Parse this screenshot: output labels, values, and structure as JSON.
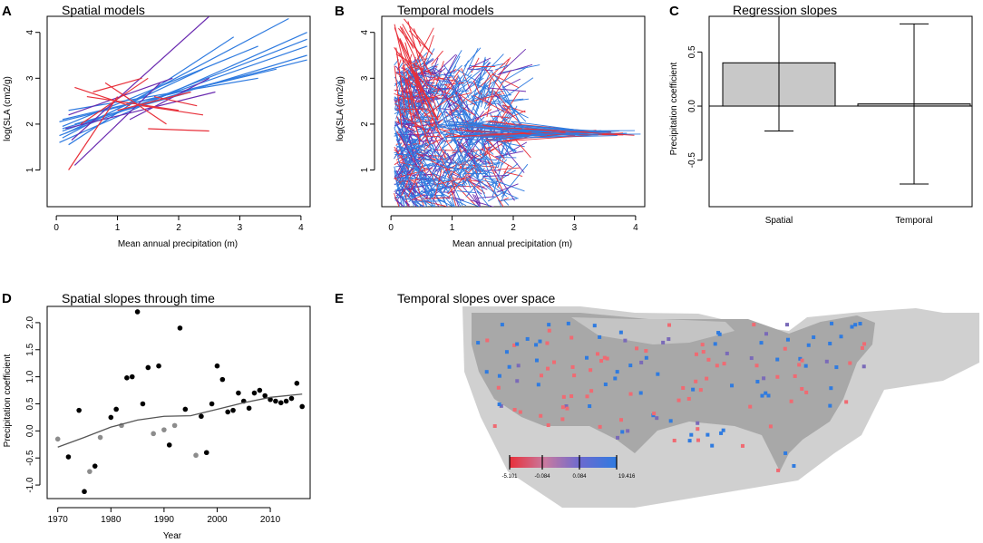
{
  "panel_letters": {
    "a": "A",
    "b": "B",
    "c": "C",
    "d": "D",
    "e": "E"
  },
  "colors": {
    "red": "#e8303a",
    "blue": "#2f7be0",
    "purple": "#6a2bb0",
    "bar": "#c8c8c8",
    "map_bg": "#d0d0d0",
    "map_dot": "#a8a8a8",
    "point_black": "#000000",
    "point_grey": "#8c8c8c"
  },
  "chart_data": [
    {
      "id": "A",
      "type": "line",
      "title": "Spatial models",
      "xlabel": "Mean annual precipitation (m)",
      "ylabel": "log(SLA (cm2/g)",
      "xlim": [
        -0.15,
        4.15
      ],
      "ylim": [
        0.2,
        4.35
      ],
      "xticks": [
        0,
        1,
        2,
        3,
        4
      ],
      "yticks": [
        1,
        2,
        3,
        4
      ],
      "segments": [
        {
          "x0": 0.05,
          "y0": 1.6,
          "x1": 4.1,
          "y1": 4.0,
          "color": "blue"
        },
        {
          "x0": 0.1,
          "y0": 1.7,
          "x1": 3.8,
          "y1": 4.3,
          "color": "blue"
        },
        {
          "x0": 0.05,
          "y0": 1.75,
          "x1": 4.1,
          "y1": 3.85,
          "color": "blue"
        },
        {
          "x0": 0.1,
          "y0": 1.85,
          "x1": 4.1,
          "y1": 3.7,
          "color": "blue"
        },
        {
          "x0": 0.1,
          "y0": 1.9,
          "x1": 4.1,
          "y1": 3.5,
          "color": "blue"
        },
        {
          "x0": 0.05,
          "y0": 2.05,
          "x1": 4.1,
          "y1": 3.4,
          "color": "blue"
        },
        {
          "x0": 0.1,
          "y0": 1.95,
          "x1": 3.3,
          "y1": 3.7,
          "color": "blue"
        },
        {
          "x0": 0.1,
          "y0": 2.1,
          "x1": 3.6,
          "y1": 3.2,
          "color": "blue"
        },
        {
          "x0": 0.2,
          "y0": 1.55,
          "x1": 2.9,
          "y1": 3.9,
          "color": "blue"
        },
        {
          "x0": 0.2,
          "y0": 2.3,
          "x1": 3.3,
          "y1": 3.0,
          "color": "blue"
        },
        {
          "x0": 0.15,
          "y0": 1.8,
          "x1": 2.4,
          "y1": 3.2,
          "color": "blue"
        },
        {
          "x0": 0.3,
          "y0": 2.0,
          "x1": 2.2,
          "y1": 2.7,
          "color": "blue"
        },
        {
          "x0": 0.25,
          "y0": 1.65,
          "x1": 2.5,
          "y1": 4.35,
          "color": "purple"
        },
        {
          "x0": 0.15,
          "y0": 1.9,
          "x1": 2.6,
          "y1": 2.7,
          "color": "purple"
        },
        {
          "x0": 0.2,
          "y0": 2.2,
          "x1": 1.9,
          "y1": 3.0,
          "color": "purple"
        },
        {
          "x0": 0.3,
          "y0": 1.1,
          "x1": 1.7,
          "y1": 2.9,
          "color": "purple"
        },
        {
          "x0": 1.2,
          "y0": 2.1,
          "x1": 2.5,
          "y1": 3.0,
          "color": "purple"
        },
        {
          "x0": 0.2,
          "y0": 1.0,
          "x1": 1.0,
          "y1": 2.6,
          "color": "red"
        },
        {
          "x0": 0.3,
          "y0": 2.8,
          "x1": 1.2,
          "y1": 2.4,
          "color": "red"
        },
        {
          "x0": 0.5,
          "y0": 2.6,
          "x1": 2.0,
          "y1": 2.3,
          "color": "red"
        },
        {
          "x0": 0.8,
          "y0": 2.9,
          "x1": 1.8,
          "y1": 2.0,
          "color": "red"
        },
        {
          "x0": 1.0,
          "y0": 2.3,
          "x1": 2.2,
          "y1": 2.7,
          "color": "red"
        },
        {
          "x0": 1.5,
          "y0": 1.9,
          "x1": 2.5,
          "y1": 1.85,
          "color": "red"
        },
        {
          "x0": 1.4,
          "y0": 2.4,
          "x1": 2.4,
          "y1": 2.2,
          "color": "red"
        },
        {
          "x0": 0.4,
          "y0": 2.0,
          "x1": 1.5,
          "y1": 3.0,
          "color": "red"
        },
        {
          "x0": 0.6,
          "y0": 2.7,
          "x1": 1.4,
          "y1": 3.0,
          "color": "red"
        },
        {
          "x0": 1.6,
          "y0": 2.6,
          "x1": 2.3,
          "y1": 2.4,
          "color": "red"
        }
      ]
    },
    {
      "id": "B",
      "type": "line",
      "title": "Temporal models",
      "xlabel": "Mean annual precipitation (m)",
      "ylabel": "log(SLA (cm2/g)",
      "xlim": [
        -0.15,
        4.15
      ],
      "ylim": [
        0.2,
        4.35
      ],
      "xticks": [
        0,
        1,
        2,
        3,
        4
      ],
      "yticks": [
        1,
        2,
        3,
        4
      ],
      "segments_note": "dense cloud of ~1500 short per-site regression lines, centred near x 0.3–1.8, y 1–3, tail extending to x 4.1 at y 1.8; red spikes near x 0.1–0.3 up to y 4.3"
    },
    {
      "id": "C",
      "type": "bar",
      "title": "Regression slopes",
      "ylabel": "Precipitation coefficient",
      "categories": [
        "Spatial",
        "Temporal"
      ],
      "values": [
        0.4,
        0.02
      ],
      "error_low": [
        -0.23,
        -0.72
      ],
      "error_high": [
        0.83,
        0.76
      ],
      "ylim": [
        -0.93,
        0.83
      ],
      "yticks": [
        -0.5,
        0.0,
        0.5
      ],
      "ytick_labels": [
        "-0.5",
        "0.0",
        "0.5"
      ]
    },
    {
      "id": "D",
      "type": "scatter",
      "title": "Spatial slopes through time",
      "xlabel": "Year",
      "ylabel": "Precipitation coefficient",
      "xlim": [
        1968,
        2017.5
      ],
      "ylim": [
        -1.25,
        2.3
      ],
      "xticks": [
        1970,
        1980,
        1990,
        2000,
        2010
      ],
      "yticks": [
        -1.0,
        -0.5,
        0.0,
        0.5,
        1.0,
        1.5,
        2.0
      ],
      "ytick_labels": [
        "-1.0",
        "-0.5",
        "0.0",
        "0.5",
        "1.0",
        "1.5",
        "2.0"
      ],
      "points": [
        {
          "x": 1970,
          "y": -0.15,
          "c": "grey"
        },
        {
          "x": 1972,
          "y": -0.48,
          "c": "black"
        },
        {
          "x": 1974,
          "y": 0.38,
          "c": "black"
        },
        {
          "x": 1975,
          "y": -1.12,
          "c": "black"
        },
        {
          "x": 1976,
          "y": -0.75,
          "c": "grey"
        },
        {
          "x": 1977,
          "y": -0.65,
          "c": "black"
        },
        {
          "x": 1978,
          "y": -0.12,
          "c": "grey"
        },
        {
          "x": 1980,
          "y": 0.25,
          "c": "black"
        },
        {
          "x": 1981,
          "y": 0.4,
          "c": "black"
        },
        {
          "x": 1982,
          "y": 0.1,
          "c": "grey"
        },
        {
          "x": 1983,
          "y": 0.98,
          "c": "black"
        },
        {
          "x": 1984,
          "y": 1.0,
          "c": "black"
        },
        {
          "x": 1985,
          "y": 2.2,
          "c": "black"
        },
        {
          "x": 1986,
          "y": 0.5,
          "c": "black"
        },
        {
          "x": 1987,
          "y": 1.17,
          "c": "black"
        },
        {
          "x": 1988,
          "y": -0.05,
          "c": "grey"
        },
        {
          "x": 1989,
          "y": 1.2,
          "c": "black"
        },
        {
          "x": 1990,
          "y": 0.02,
          "c": "grey"
        },
        {
          "x": 1991,
          "y": -0.26,
          "c": "black"
        },
        {
          "x": 1992,
          "y": 0.1,
          "c": "grey"
        },
        {
          "x": 1993,
          "y": 1.9,
          "c": "black"
        },
        {
          "x": 1994,
          "y": 0.4,
          "c": "black"
        },
        {
          "x": 1996,
          "y": -0.45,
          "c": "grey"
        },
        {
          "x": 1997,
          "y": 0.27,
          "c": "black"
        },
        {
          "x": 1998,
          "y": -0.4,
          "c": "black"
        },
        {
          "x": 1999,
          "y": 0.5,
          "c": "black"
        },
        {
          "x": 2000,
          "y": 1.2,
          "c": "black"
        },
        {
          "x": 2001,
          "y": 0.95,
          "c": "black"
        },
        {
          "x": 2002,
          "y": 0.35,
          "c": "black"
        },
        {
          "x": 2003,
          "y": 0.38,
          "c": "black"
        },
        {
          "x": 2004,
          "y": 0.7,
          "c": "black"
        },
        {
          "x": 2005,
          "y": 0.55,
          "c": "black"
        },
        {
          "x": 2006,
          "y": 0.42,
          "c": "black"
        },
        {
          "x": 2007,
          "y": 0.7,
          "c": "black"
        },
        {
          "x": 2008,
          "y": 0.75,
          "c": "black"
        },
        {
          "x": 2009,
          "y": 0.65,
          "c": "black"
        },
        {
          "x": 2010,
          "y": 0.58,
          "c": "black"
        },
        {
          "x": 2011,
          "y": 0.55,
          "c": "black"
        },
        {
          "x": 2012,
          "y": 0.52,
          "c": "black"
        },
        {
          "x": 2013,
          "y": 0.55,
          "c": "black"
        },
        {
          "x": 2014,
          "y": 0.6,
          "c": "black"
        },
        {
          "x": 2015,
          "y": 0.88,
          "c": "black"
        },
        {
          "x": 2016,
          "y": 0.45,
          "c": "black"
        }
      ],
      "smooth_x": [
        1970,
        1975,
        1980,
        1985,
        1990,
        1995,
        2000,
        2005,
        2010,
        2016
      ],
      "smooth_y": [
        -0.3,
        -0.12,
        0.07,
        0.2,
        0.27,
        0.28,
        0.4,
        0.52,
        0.62,
        0.68
      ]
    },
    {
      "id": "E",
      "type": "heatmap",
      "title": "Temporal slopes over space",
      "legend_ticks": [
        "-5.101",
        "-0.084",
        "0.084",
        "19.416"
      ],
      "legend_colors": [
        "#e8303a",
        "#c87aa0",
        "#6a6ad0",
        "#2f7be0"
      ]
    }
  ]
}
